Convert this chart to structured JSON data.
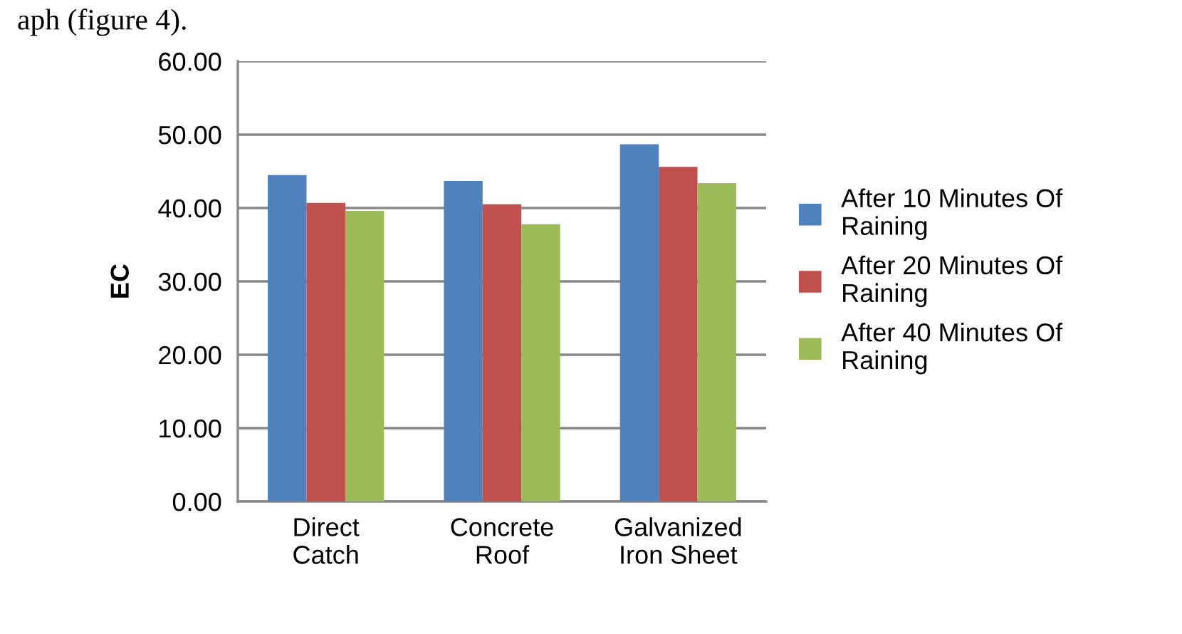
{
  "chart_data": {
    "type": "bar",
    "ylabel": "EC",
    "annotations": [
      "aph (figure 4)."
    ],
    "categories": [
      "Direct Catch",
      "Concrete Roof",
      "Galvanized Iron Sheet"
    ],
    "series": [
      {
        "name": "After 10 Minutes Of Raining",
        "color": "#4f81bd",
        "values": [
          44.5,
          43.7,
          48.7
        ]
      },
      {
        "name": "After 20 Minutes Of Raining",
        "color": "#c0504d",
        "values": [
          40.7,
          40.5,
          45.6
        ]
      },
      {
        "name": "After 40 Minutes Of Raining",
        "color": "#9bbb59",
        "values": [
          39.6,
          37.8,
          43.4
        ]
      }
    ],
    "ylim": [
      0,
      60
    ],
    "yticks": [
      {
        "value": 0,
        "label": "0.00"
      },
      {
        "value": 10,
        "label": "10.00"
      },
      {
        "value": 20,
        "label": "20.00"
      },
      {
        "value": 30,
        "label": "30.00"
      },
      {
        "value": 40,
        "label": "40.00"
      },
      {
        "value": 50,
        "label": "50.00"
      },
      {
        "value": 60,
        "label": "60.00"
      }
    ],
    "grid": "y",
    "legend": "right"
  }
}
